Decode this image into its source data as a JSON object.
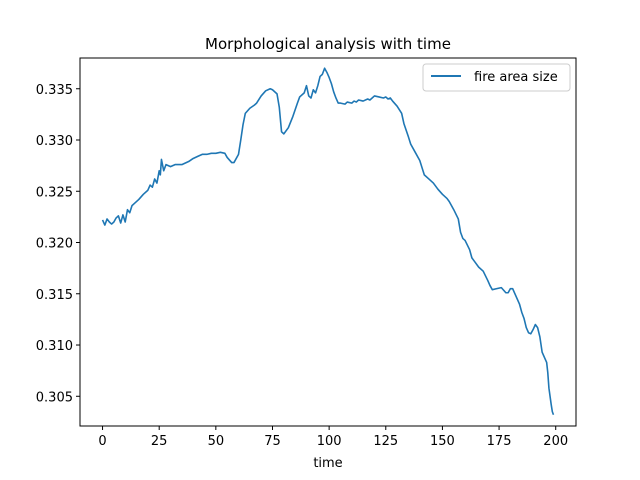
{
  "chart_data": {
    "type": "line",
    "title": "Morphological analysis with time",
    "xlabel": "time",
    "ylabel": "",
    "xlim": [
      -9.95,
      208.95
    ],
    "ylim": [
      0.3021,
      0.338
    ],
    "xticks": [
      0,
      25,
      50,
      75,
      100,
      125,
      150,
      175,
      200
    ],
    "yticks": [
      0.305,
      0.31,
      0.315,
      0.32,
      0.325,
      0.33,
      0.335
    ],
    "xtick_labels": [
      "0",
      "25",
      "50",
      "75",
      "100",
      "125",
      "150",
      "175",
      "200"
    ],
    "ytick_labels": [
      "0.305",
      "0.310",
      "0.315",
      "0.320",
      "0.325",
      "0.330",
      "0.335"
    ],
    "grid": false,
    "legend_position": "top-right",
    "series": [
      {
        "name": "fire area size",
        "color": "#1f77b4",
        "points": [
          [
            0,
            0.3222
          ],
          [
            1,
            0.3217
          ],
          [
            2,
            0.3223
          ],
          [
            3,
            0.322
          ],
          [
            4,
            0.3218
          ],
          [
            5,
            0.322
          ],
          [
            6,
            0.3224
          ],
          [
            7,
            0.3226
          ],
          [
            8,
            0.3219
          ],
          [
            9,
            0.3227
          ],
          [
            10,
            0.322
          ],
          [
            11,
            0.3232
          ],
          [
            12,
            0.3229
          ],
          [
            13,
            0.3236
          ],
          [
            14,
            0.3238
          ],
          [
            16,
            0.3242
          ],
          [
            18,
            0.3247
          ],
          [
            20,
            0.3251
          ],
          [
            21,
            0.3256
          ],
          [
            22,
            0.3254
          ],
          [
            23,
            0.3262
          ],
          [
            24,
            0.3258
          ],
          [
            25,
            0.327
          ],
          [
            25.5,
            0.3266
          ],
          [
            26,
            0.3281
          ],
          [
            27,
            0.327
          ],
          [
            28,
            0.3276
          ],
          [
            30,
            0.3274
          ],
          [
            32,
            0.3276
          ],
          [
            35,
            0.3276
          ],
          [
            38,
            0.3279
          ],
          [
            40,
            0.3282
          ],
          [
            42,
            0.3284
          ],
          [
            44,
            0.3286
          ],
          [
            46,
            0.3286
          ],
          [
            48,
            0.3287
          ],
          [
            50,
            0.3287
          ],
          [
            52,
            0.3288
          ],
          [
            54,
            0.3287
          ],
          [
            55,
            0.3283
          ],
          [
            57,
            0.3278
          ],
          [
            58,
            0.3278
          ],
          [
            60,
            0.3286
          ],
          [
            61,
            0.33
          ],
          [
            62,
            0.3315
          ],
          [
            63,
            0.3326
          ],
          [
            65,
            0.3331
          ],
          [
            67,
            0.3334
          ],
          [
            68,
            0.3336
          ],
          [
            70,
            0.3343
          ],
          [
            72,
            0.3348
          ],
          [
            74,
            0.335
          ],
          [
            75,
            0.3349
          ],
          [
            77,
            0.3345
          ],
          [
            78,
            0.3332
          ],
          [
            79,
            0.3308
          ],
          [
            80,
            0.3306
          ],
          [
            82,
            0.3312
          ],
          [
            84,
            0.3323
          ],
          [
            86,
            0.3336
          ],
          [
            87,
            0.3342
          ],
          [
            89,
            0.3346
          ],
          [
            90,
            0.3353
          ],
          [
            91,
            0.3343
          ],
          [
            92,
            0.3341
          ],
          [
            93,
            0.3349
          ],
          [
            94,
            0.3346
          ],
          [
            95,
            0.3353
          ],
          [
            96,
            0.3362
          ],
          [
            97,
            0.3364
          ],
          [
            98,
            0.337
          ],
          [
            99,
            0.3366
          ],
          [
            100,
            0.3361
          ],
          [
            101,
            0.3355
          ],
          [
            102,
            0.3347
          ],
          [
            103,
            0.3341
          ],
          [
            104,
            0.3336
          ],
          [
            105,
            0.3336
          ],
          [
            107,
            0.3335
          ],
          [
            108,
            0.3337
          ],
          [
            110,
            0.3336
          ],
          [
            111,
            0.3338
          ],
          [
            112,
            0.3337
          ],
          [
            113,
            0.3339
          ],
          [
            115,
            0.3338
          ],
          [
            117,
            0.334
          ],
          [
            118,
            0.3339
          ],
          [
            120,
            0.3343
          ],
          [
            122,
            0.3342
          ],
          [
            124,
            0.3341
          ],
          [
            125,
            0.3342
          ],
          [
            126,
            0.334
          ],
          [
            127,
            0.3341
          ],
          [
            128,
            0.3338
          ],
          [
            130,
            0.3333
          ],
          [
            132,
            0.3326
          ],
          [
            133,
            0.3316
          ],
          [
            135,
            0.3303
          ],
          [
            136,
            0.3296
          ],
          [
            138,
            0.3288
          ],
          [
            140,
            0.328
          ],
          [
            141,
            0.3273
          ],
          [
            142,
            0.3266
          ],
          [
            144,
            0.3262
          ],
          [
            146,
            0.3258
          ],
          [
            148,
            0.3252
          ],
          [
            150,
            0.3247
          ],
          [
            152,
            0.3243
          ],
          [
            153,
            0.324
          ],
          [
            155,
            0.3232
          ],
          [
            157,
            0.3223
          ],
          [
            158,
            0.321
          ],
          [
            159,
            0.3204
          ],
          [
            160,
            0.3202
          ],
          [
            162,
            0.3193
          ],
          [
            163,
            0.3185
          ],
          [
            164,
            0.3182
          ],
          [
            166,
            0.3176
          ],
          [
            168,
            0.3172
          ],
          [
            170,
            0.3163
          ],
          [
            171,
            0.3158
          ],
          [
            172,
            0.3154
          ],
          [
            174,
            0.3155
          ],
          [
            176,
            0.3156
          ],
          [
            178,
            0.3151
          ],
          [
            179,
            0.3151
          ],
          [
            180,
            0.3155
          ],
          [
            181,
            0.3155
          ],
          [
            182,
            0.315
          ],
          [
            184,
            0.314
          ],
          [
            185,
            0.3132
          ],
          [
            186,
            0.3126
          ],
          [
            187,
            0.3117
          ],
          [
            188,
            0.3112
          ],
          [
            189,
            0.3111
          ],
          [
            190,
            0.3115
          ],
          [
            191,
            0.312
          ],
          [
            192,
            0.3117
          ],
          [
            193,
            0.3108
          ],
          [
            194,
            0.3093
          ],
          [
            195,
            0.3088
          ],
          [
            196,
            0.3083
          ],
          [
            196.5,
            0.3073
          ],
          [
            197,
            0.3058
          ],
          [
            198,
            0.3042
          ],
          [
            198.5,
            0.3035
          ],
          [
            199,
            0.3032
          ]
        ]
      }
    ]
  }
}
